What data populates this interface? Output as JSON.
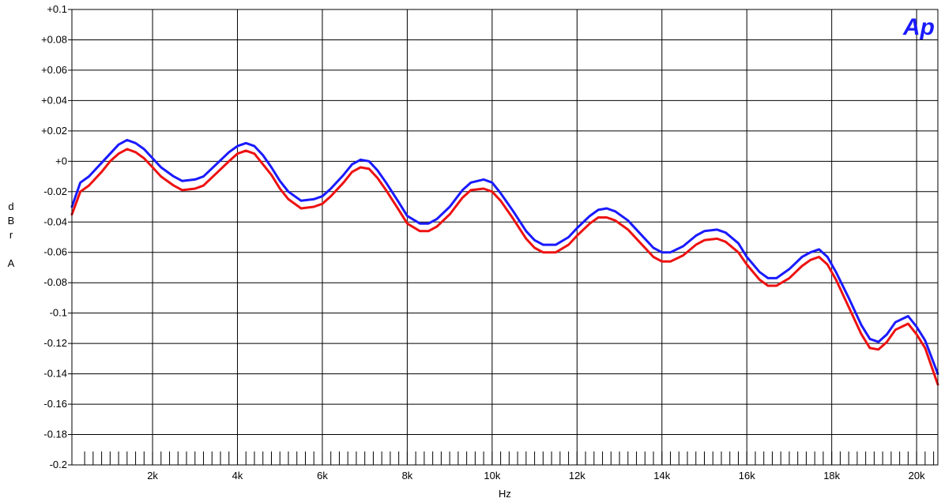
{
  "chart_data": {
    "type": "line",
    "xlabel": "Hz",
    "ylabel": [
      "d",
      "B",
      "r",
      "",
      "A"
    ],
    "logo_text": "Ap",
    "xlim": [
      100,
      20500
    ],
    "ylim": [
      -0.2,
      0.1
    ],
    "grid": true,
    "x_ticks": [
      {
        "value": 2000,
        "label": "2k"
      },
      {
        "value": 4000,
        "label": "4k"
      },
      {
        "value": 6000,
        "label": "6k"
      },
      {
        "value": 8000,
        "label": "8k"
      },
      {
        "value": 10000,
        "label": "10k"
      },
      {
        "value": 12000,
        "label": "12k"
      },
      {
        "value": 14000,
        "label": "14k"
      },
      {
        "value": 16000,
        "label": "16k"
      },
      {
        "value": 18000,
        "label": "18k"
      },
      {
        "value": 20000,
        "label": "20k"
      }
    ],
    "y_ticks": [
      {
        "value": 0.1,
        "label": "+0.1"
      },
      {
        "value": 0.08,
        "label": "+0.08"
      },
      {
        "value": 0.06,
        "label": "+0.06"
      },
      {
        "value": 0.04,
        "label": "+0.04"
      },
      {
        "value": 0.02,
        "label": "+0.02"
      },
      {
        "value": 0,
        "label": "+0"
      },
      {
        "value": -0.02,
        "label": "-0.02"
      },
      {
        "value": -0.04,
        "label": "-0.04"
      },
      {
        "value": -0.06,
        "label": "-0.06"
      },
      {
        "value": -0.08,
        "label": "-0.08"
      },
      {
        "value": -0.1,
        "label": "-0.1"
      },
      {
        "value": -0.12,
        "label": "-0.12"
      },
      {
        "value": -0.14,
        "label": "-0.14"
      },
      {
        "value": -0.16,
        "label": "-0.16"
      },
      {
        "value": -0.18,
        "label": "-0.18"
      },
      {
        "value": -0.2,
        "label": "-0.2"
      }
    ],
    "minor_x_step": 200,
    "series": [
      {
        "color": "#1a1aff",
        "points": [
          [
            100,
            -0.03
          ],
          [
            300,
            -0.014
          ],
          [
            500,
            -0.01
          ],
          [
            800,
            -0.001
          ],
          [
            1000,
            0.005
          ],
          [
            1200,
            0.011
          ],
          [
            1400,
            0.014
          ],
          [
            1600,
            0.012
          ],
          [
            1800,
            0.008
          ],
          [
            2000,
            0.002
          ],
          [
            2200,
            -0.004
          ],
          [
            2500,
            -0.01
          ],
          [
            2700,
            -0.013
          ],
          [
            3000,
            -0.012
          ],
          [
            3200,
            -0.01
          ],
          [
            3500,
            -0.002
          ],
          [
            3800,
            0.006
          ],
          [
            4000,
            0.01
          ],
          [
            4200,
            0.012
          ],
          [
            4400,
            0.01
          ],
          [
            4600,
            0.004
          ],
          [
            4800,
            -0.004
          ],
          [
            5000,
            -0.013
          ],
          [
            5200,
            -0.02
          ],
          [
            5500,
            -0.026
          ],
          [
            5800,
            -0.025
          ],
          [
            6000,
            -0.023
          ],
          [
            6200,
            -0.018
          ],
          [
            6500,
            -0.009
          ],
          [
            6700,
            -0.002
          ],
          [
            6900,
            0.001
          ],
          [
            7100,
            0.0
          ],
          [
            7300,
            -0.006
          ],
          [
            7500,
            -0.014
          ],
          [
            7800,
            -0.027
          ],
          [
            8000,
            -0.036
          ],
          [
            8300,
            -0.041
          ],
          [
            8500,
            -0.041
          ],
          [
            8700,
            -0.038
          ],
          [
            9000,
            -0.03
          ],
          [
            9300,
            -0.019
          ],
          [
            9500,
            -0.014
          ],
          [
            9800,
            -0.012
          ],
          [
            10000,
            -0.014
          ],
          [
            10200,
            -0.021
          ],
          [
            10500,
            -0.033
          ],
          [
            10800,
            -0.046
          ],
          [
            11000,
            -0.052
          ],
          [
            11200,
            -0.055
          ],
          [
            11500,
            -0.055
          ],
          [
            11800,
            -0.05
          ],
          [
            12000,
            -0.044
          ],
          [
            12300,
            -0.036
          ],
          [
            12500,
            -0.032
          ],
          [
            12700,
            -0.031
          ],
          [
            12900,
            -0.033
          ],
          [
            13200,
            -0.039
          ],
          [
            13500,
            -0.048
          ],
          [
            13800,
            -0.057
          ],
          [
            14000,
            -0.06
          ],
          [
            14200,
            -0.06
          ],
          [
            14500,
            -0.056
          ],
          [
            14800,
            -0.049
          ],
          [
            15000,
            -0.046
          ],
          [
            15300,
            -0.045
          ],
          [
            15500,
            -0.047
          ],
          [
            15800,
            -0.054
          ],
          [
            16000,
            -0.063
          ],
          [
            16300,
            -0.073
          ],
          [
            16500,
            -0.077
          ],
          [
            16700,
            -0.077
          ],
          [
            17000,
            -0.071
          ],
          [
            17300,
            -0.063
          ],
          [
            17500,
            -0.06
          ],
          [
            17700,
            -0.058
          ],
          [
            17900,
            -0.063
          ],
          [
            18100,
            -0.073
          ],
          [
            18400,
            -0.09
          ],
          [
            18700,
            -0.108
          ],
          [
            18900,
            -0.117
          ],
          [
            19100,
            -0.119
          ],
          [
            19300,
            -0.114
          ],
          [
            19500,
            -0.106
          ],
          [
            19800,
            -0.102
          ],
          [
            20000,
            -0.109
          ],
          [
            20200,
            -0.118
          ],
          [
            20500,
            -0.14
          ]
        ]
      },
      {
        "color": "#ee1111",
        "points": [
          [
            100,
            -0.035
          ],
          [
            300,
            -0.02
          ],
          [
            500,
            -0.016
          ],
          [
            800,
            -0.007
          ],
          [
            1000,
            0.0
          ],
          [
            1200,
            0.005
          ],
          [
            1400,
            0.008
          ],
          [
            1600,
            0.006
          ],
          [
            1800,
            0.002
          ],
          [
            2000,
            -0.004
          ],
          [
            2200,
            -0.01
          ],
          [
            2500,
            -0.016
          ],
          [
            2700,
            -0.019
          ],
          [
            3000,
            -0.018
          ],
          [
            3200,
            -0.016
          ],
          [
            3500,
            -0.008
          ],
          [
            3800,
            0.0
          ],
          [
            4000,
            0.005
          ],
          [
            4200,
            0.007
          ],
          [
            4400,
            0.005
          ],
          [
            4600,
            -0.002
          ],
          [
            4800,
            -0.009
          ],
          [
            5000,
            -0.018
          ],
          [
            5200,
            -0.025
          ],
          [
            5500,
            -0.031
          ],
          [
            5800,
            -0.03
          ],
          [
            6000,
            -0.028
          ],
          [
            6200,
            -0.023
          ],
          [
            6500,
            -0.014
          ],
          [
            6700,
            -0.007
          ],
          [
            6900,
            -0.004
          ],
          [
            7100,
            -0.005
          ],
          [
            7300,
            -0.011
          ],
          [
            7500,
            -0.019
          ],
          [
            7800,
            -0.032
          ],
          [
            8000,
            -0.041
          ],
          [
            8300,
            -0.046
          ],
          [
            8500,
            -0.046
          ],
          [
            8700,
            -0.043
          ],
          [
            9000,
            -0.035
          ],
          [
            9300,
            -0.024
          ],
          [
            9500,
            -0.019
          ],
          [
            9800,
            -0.018
          ],
          [
            10000,
            -0.02
          ],
          [
            10200,
            -0.026
          ],
          [
            10500,
            -0.038
          ],
          [
            10800,
            -0.051
          ],
          [
            11000,
            -0.057
          ],
          [
            11200,
            -0.06
          ],
          [
            11500,
            -0.06
          ],
          [
            11800,
            -0.055
          ],
          [
            12000,
            -0.049
          ],
          [
            12300,
            -0.041
          ],
          [
            12500,
            -0.037
          ],
          [
            12700,
            -0.037
          ],
          [
            12900,
            -0.039
          ],
          [
            13200,
            -0.045
          ],
          [
            13500,
            -0.054
          ],
          [
            13800,
            -0.063
          ],
          [
            14000,
            -0.066
          ],
          [
            14200,
            -0.066
          ],
          [
            14500,
            -0.062
          ],
          [
            14800,
            -0.055
          ],
          [
            15000,
            -0.052
          ],
          [
            15300,
            -0.051
          ],
          [
            15500,
            -0.053
          ],
          [
            15800,
            -0.06
          ],
          [
            16000,
            -0.068
          ],
          [
            16300,
            -0.078
          ],
          [
            16500,
            -0.082
          ],
          [
            16700,
            -0.082
          ],
          [
            17000,
            -0.077
          ],
          [
            17300,
            -0.069
          ],
          [
            17500,
            -0.065
          ],
          [
            17700,
            -0.063
          ],
          [
            17900,
            -0.068
          ],
          [
            18100,
            -0.078
          ],
          [
            18400,
            -0.096
          ],
          [
            18700,
            -0.114
          ],
          [
            18900,
            -0.123
          ],
          [
            19100,
            -0.124
          ],
          [
            19300,
            -0.119
          ],
          [
            19500,
            -0.111
          ],
          [
            19800,
            -0.107
          ],
          [
            20000,
            -0.114
          ],
          [
            20200,
            -0.123
          ],
          [
            20500,
            -0.147
          ]
        ]
      }
    ]
  }
}
